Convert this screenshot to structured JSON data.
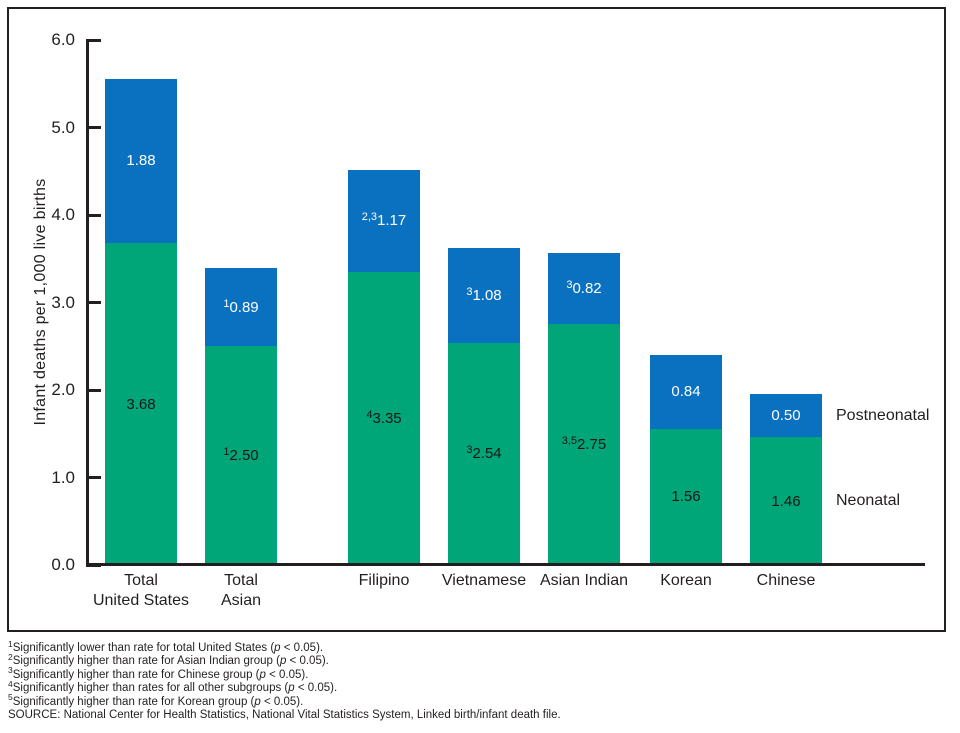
{
  "chart_data": {
    "type": "bar",
    "stacked": true,
    "title": "",
    "xlabel": "",
    "ylabel": "Infant deaths per 1,000 live births",
    "ylim": [
      0.0,
      6.0
    ],
    "ytick_interval": 1.0,
    "ytick_labels": [
      "6.0",
      "5.0",
      "4.0",
      "3.0",
      "2.0",
      "1.0",
      "0.0"
    ],
    "grid": false,
    "legend_position": "right of last bar",
    "categories": [
      "Total United States",
      "Total Asian",
      "Filipino",
      "Vietnamese",
      "Asian Indian",
      "Korean",
      "Chinese"
    ],
    "series": [
      {
        "name": "Neonatal",
        "color": "#00a578",
        "values": [
          3.68,
          2.5,
          3.35,
          2.54,
          2.75,
          1.56,
          1.46
        ]
      },
      {
        "name": "Postneonatal",
        "color": "#0a70c0",
        "values": [
          1.88,
          0.89,
          1.17,
          1.08,
          0.82,
          0.84,
          0.5
        ]
      }
    ],
    "bars": [
      {
        "label_lines": [
          "Total",
          "United States"
        ],
        "neonatal": {
          "sup": "",
          "value": "3.68"
        },
        "postneonatal": {
          "sup": "",
          "value": "1.88"
        }
      },
      {
        "label_lines": [
          "Total",
          "Asian"
        ],
        "neonatal": {
          "sup": "1",
          "value": "2.50"
        },
        "postneonatal": {
          "sup": "1",
          "value": "0.89"
        }
      },
      {
        "label_lines": [
          "Filipino"
        ],
        "neonatal": {
          "sup": "4",
          "value": "3.35"
        },
        "postneonatal": {
          "sup": "2,3",
          "value": "1.17"
        }
      },
      {
        "label_lines": [
          "Vietnamese"
        ],
        "neonatal": {
          "sup": "3",
          "value": "2.54"
        },
        "postneonatal": {
          "sup": "3",
          "value": "1.08"
        }
      },
      {
        "label_lines": [
          "Asian Indian"
        ],
        "neonatal": {
          "sup": "3,5",
          "value": "2.75"
        },
        "postneonatal": {
          "sup": "3",
          "value": "0.82"
        }
      },
      {
        "label_lines": [
          "Korean"
        ],
        "neonatal": {
          "sup": "",
          "value": "1.56"
        },
        "postneonatal": {
          "sup": "",
          "value": "0.84"
        }
      },
      {
        "label_lines": [
          "Chinese"
        ],
        "neonatal": {
          "sup": "",
          "value": "1.46"
        },
        "postneonatal": {
          "sup": "",
          "value": "0.50"
        }
      }
    ]
  },
  "legend": {
    "postneonatal": "Postneonatal",
    "neonatal": "Neonatal"
  },
  "colors": {
    "neonatal_green": "#00a578",
    "postneonatal_blue": "#0a70c0",
    "axis_black": "#231f20"
  },
  "footnotes": [
    {
      "sup": "1",
      "pre": "Significantly lower than rate for total United States (",
      "p": "p",
      "post": " < 0.05)."
    },
    {
      "sup": "2",
      "pre": "Significantly higher than rate for Asian Indian group (",
      "p": "p",
      "post": " < 0.05)."
    },
    {
      "sup": "3",
      "pre": "Significantly higher than rate for Chinese group (",
      "p": "p",
      "post": " < 0.05)."
    },
    {
      "sup": "4",
      "pre": "Significantly higher than rates for all other subgroups (",
      "p": "p",
      "post": " < 0.05)."
    },
    {
      "sup": "5",
      "pre": "Significantly higher than rate for Korean group (",
      "p": "p",
      "post": " < 0.05)."
    }
  ],
  "source": "SOURCE: National Center for Health Statistics, National Vital Statistics System, Linked birth/infant death file."
}
